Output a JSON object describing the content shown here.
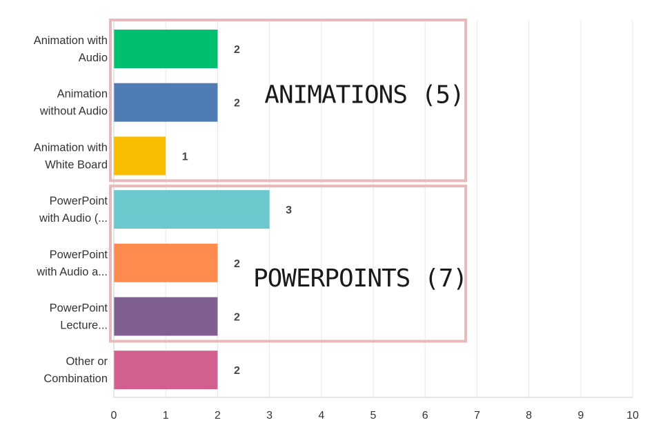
{
  "chart_data": {
    "type": "bar",
    "orientation": "horizontal",
    "categories": [
      [
        "Animation with",
        "Audio"
      ],
      [
        "Animation",
        "without Audio"
      ],
      [
        "Animation with",
        "White Board"
      ],
      [
        "PowerPoint",
        "with Audio (..."
      ],
      [
        "PowerPoint",
        "with Audio a..."
      ],
      [
        "PowerPoint",
        "Lecture..."
      ],
      [
        "Other or",
        "Combination"
      ]
    ],
    "values": [
      2,
      2,
      1,
      3,
      2,
      2,
      2
    ],
    "colors": [
      "#00bf6f",
      "#507cb6",
      "#f9be00",
      "#6bc8cd",
      "#ff8b4f",
      "#7f5f8f",
      "#d25f90"
    ],
    "xlim": [
      0,
      10
    ],
    "xticks": [
      0,
      1,
      2,
      3,
      4,
      5,
      6,
      7,
      8,
      9,
      10
    ],
    "grid": true,
    "title": "",
    "xlabel": "",
    "ylabel": "",
    "annotations": [
      {
        "text": "ANIMATIONS (5)",
        "group_start": 0,
        "group_end": 2,
        "box_color": "#e8b9bb"
      },
      {
        "text": "POWERPOINTS (7)",
        "group_start": 3,
        "group_end": 5,
        "box_color": "#e8b9bb"
      }
    ]
  }
}
